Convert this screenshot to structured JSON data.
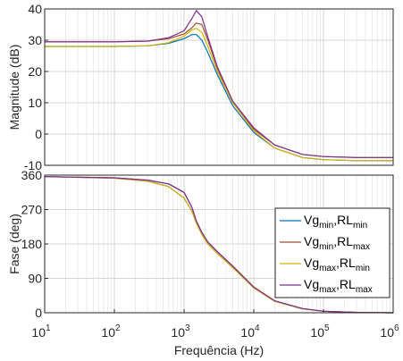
{
  "chart_data": [
    {
      "type": "line",
      "ylabel": "Magnitude (dB)",
      "xscale": "log",
      "xlim": [
        10,
        1000000
      ],
      "ylim": [
        -10,
        40
      ],
      "yticks": [
        "40",
        "30",
        "20",
        "10",
        "0",
        "-10"
      ],
      "grid": true,
      "series": [
        {
          "x": [
            10,
            100,
            300,
            600,
            1000,
            1300,
            1500,
            1800,
            2200,
            3000,
            5000,
            10000,
            20000,
            50000,
            100000,
            300000,
            1000000
          ],
          "y": [
            28,
            28,
            28.2,
            29,
            30.5,
            31.8,
            31.8,
            30,
            26,
            19,
            9,
            0.5,
            -4.5,
            -7.5,
            -8.2,
            -8.5,
            -8.5
          ]
        },
        {
          "x": [
            10,
            100,
            300,
            600,
            1000,
            1300,
            1500,
            1800,
            2200,
            3000,
            5000,
            10000,
            20000,
            50000,
            100000,
            300000,
            1000000
          ],
          "y": [
            29.5,
            29.5,
            29.7,
            30.5,
            32,
            34,
            35.5,
            35,
            30,
            21,
            10,
            1.5,
            -3.5,
            -6.5,
            -7.2,
            -7.5,
            -7.5
          ]
        },
        {
          "x": [
            10,
            100,
            300,
            600,
            1000,
            1300,
            1500,
            1800,
            2200,
            3000,
            5000,
            10000,
            20000,
            50000,
            100000,
            300000,
            1000000
          ],
          "y": [
            28,
            28,
            28.2,
            29.2,
            31.3,
            33.3,
            33.8,
            32.5,
            28,
            20,
            10,
            1,
            -4.5,
            -7.5,
            -8.2,
            -8.5,
            -8.5
          ]
        },
        {
          "x": [
            10,
            100,
            300,
            600,
            1000,
            1300,
            1500,
            1800,
            2200,
            3000,
            5000,
            10000,
            20000,
            50000,
            100000,
            300000,
            1000000
          ],
          "y": [
            29.5,
            29.5,
            29.7,
            30.8,
            33,
            37,
            39.5,
            37.5,
            31,
            21.5,
            10.5,
            2,
            -3.5,
            -6.5,
            -7.2,
            -7.5,
            -7.5
          ]
        }
      ]
    },
    {
      "type": "line",
      "xlabel": "Frequência  (Hz)",
      "ylabel": "Fase (deg)",
      "xscale": "log",
      "xlim": [
        10,
        1000000
      ],
      "ylim": [
        0,
        360
      ],
      "yticks": [
        "360",
        "270",
        "180",
        "90",
        "0"
      ],
      "xticks": [
        {
          "base": "10",
          "exp": "1"
        },
        {
          "base": "10",
          "exp": "2"
        },
        {
          "base": "10",
          "exp": "3"
        },
        {
          "base": "10",
          "exp": "4"
        },
        {
          "base": "10",
          "exp": "5"
        },
        {
          "base": "10",
          "exp": "6"
        }
      ],
      "grid": true,
      "legend": {
        "placement": "right",
        "entries": [
          {
            "a": "Vg",
            "a_sub": "min",
            "b": "RL",
            "b_sub": "min"
          },
          {
            "a": "Vg",
            "a_sub": "min",
            "b": "RL",
            "b_sub": "max"
          },
          {
            "a": "Vg",
            "a_sub": "max",
            "b": "RL",
            "b_sub": "min"
          },
          {
            "a": "Vg",
            "a_sub": "max",
            "b": "RL",
            "b_sub": "max"
          }
        ]
      },
      "series": [
        {
          "x": [
            10,
            100,
            300,
            600,
            1000,
            1300,
            1500,
            1800,
            2200,
            3000,
            5000,
            10000,
            20000,
            50000,
            100000,
            300000,
            1000000
          ],
          "y": [
            356,
            352,
            344,
            330,
            300,
            265,
            235,
            205,
            180,
            155,
            118,
            65,
            30,
            10,
            4,
            1,
            0
          ]
        },
        {
          "x": [
            10,
            100,
            300,
            600,
            1000,
            1300,
            1500,
            1800,
            2200,
            3000,
            5000,
            10000,
            20000,
            50000,
            100000,
            300000,
            1000000
          ],
          "y": [
            356,
            353,
            347,
            337,
            315,
            275,
            240,
            210,
            185,
            160,
            122,
            67,
            31,
            11,
            4,
            1,
            0
          ]
        },
        {
          "x": [
            10,
            100,
            300,
            600,
            1000,
            1300,
            1500,
            1800,
            2200,
            3000,
            5000,
            10000,
            20000,
            50000,
            100000,
            300000,
            1000000
          ],
          "y": [
            356,
            352,
            344,
            330,
            300,
            265,
            235,
            205,
            180,
            155,
            118,
            65,
            30,
            10,
            4,
            1,
            0
          ]
        },
        {
          "x": [
            10,
            100,
            300,
            600,
            1000,
            1300,
            1500,
            1800,
            2200,
            3000,
            5000,
            10000,
            20000,
            50000,
            100000,
            300000,
            1000000
          ],
          "y": [
            356,
            353,
            347,
            337,
            315,
            275,
            240,
            210,
            185,
            160,
            122,
            67,
            31,
            11,
            4,
            1,
            0
          ]
        }
      ]
    }
  ],
  "colors": [
    "#0072bd",
    "#a0522d",
    "#d8b000",
    "#7e2f8e"
  ]
}
